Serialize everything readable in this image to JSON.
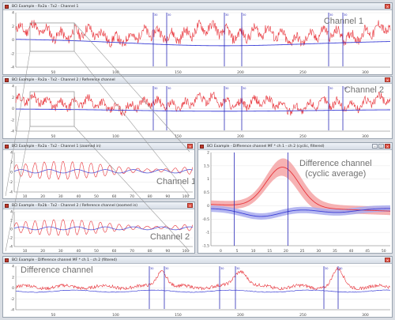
{
  "windows": {
    "ch1": {
      "title": "BCI Example - Rx2a - Tx2 - Channel 1",
      "overlay": "Channel 1",
      "yticks": [
        "4",
        "2",
        "0",
        "-2",
        "-4"
      ],
      "xticks": [
        "50",
        "100",
        "150",
        "200",
        "250",
        "300"
      ],
      "markers": [
        {
          "x": 188,
          "label": "30"
        },
        {
          "x": 205,
          "label": "30"
        },
        {
          "x": 278,
          "label": "30"
        },
        {
          "x": 300,
          "label": "30"
        },
        {
          "x": 410,
          "label": "30"
        },
        {
          "x": 428,
          "label": "30"
        }
      ]
    },
    "ch2": {
      "title": "BCI Example - Rx2a - Tx2 - Channel 2 / Reference channel",
      "overlay": "Channel 2",
      "yticks": [
        "4",
        "2",
        "0",
        "-2",
        "-4"
      ],
      "xticks": [
        "50",
        "100",
        "150",
        "200",
        "250",
        "300"
      ],
      "markers": [
        {
          "x": 188,
          "label": "30"
        },
        {
          "x": 205,
          "label": "30"
        },
        {
          "x": 278,
          "label": "30"
        },
        {
          "x": 300,
          "label": "30"
        },
        {
          "x": 410,
          "label": "30"
        },
        {
          "x": 428,
          "label": "30"
        }
      ]
    },
    "ch1zoom": {
      "title": "BCI Example - Rx2a - Tx2 - Channel 1 (zoomed in)",
      "overlay": "Channel 1",
      "yticks": [
        "4",
        "2",
        "0",
        "-2",
        "-4"
      ],
      "xticks": [
        "10",
        "20",
        "30",
        "40",
        "50",
        "60",
        "70",
        "80",
        "90",
        "100"
      ]
    },
    "ch2zoom": {
      "title": "BCI Example - Rx2b - Tx2 - Channel 2 / Reference channel (zoomed in)",
      "overlay": "Channel 2",
      "yticks": [
        "4",
        "2",
        "0",
        "-2",
        "-4"
      ],
      "xticks": [
        "10",
        "20",
        "30",
        "40",
        "50",
        "60",
        "70",
        "80",
        "90",
        "100"
      ]
    },
    "cyclic": {
      "title": "BCI Example - Difference channel MF * ch 1 - ch 2 (cyclic, filtered)",
      "overlay_line1": "Difference channel",
      "overlay_line2": "(cyclic average)",
      "yticks": [
        "2",
        "1.5",
        "1",
        "0.5",
        "0",
        "-0.5",
        "-1",
        "-1.5"
      ],
      "xticks": [
        "0",
        "5",
        "10",
        "15",
        "20",
        "25",
        "30",
        "35",
        "40",
        "45",
        "50"
      ]
    },
    "diff": {
      "title": "BCI Example - Difference channel MF * ch 1 - ch 2 (filtered)",
      "overlay": "Difference channel",
      "yticks": [
        "4",
        "2",
        "0",
        "-2",
        "-4"
      ],
      "xticks": [
        "50",
        "100",
        "150",
        "200",
        "250",
        "300"
      ],
      "markers": [
        {
          "x": 183,
          "label": "30"
        },
        {
          "x": 202,
          "label": "30"
        },
        {
          "x": 272,
          "label": "30"
        },
        {
          "x": 292,
          "label": "30"
        },
        {
          "x": 404,
          "label": "30"
        },
        {
          "x": 422,
          "label": "30"
        }
      ]
    }
  },
  "colors": {
    "red": "#e8333a",
    "red_band": "#f5a4a6",
    "blue": "#3b3fd6",
    "blue_band": "#a9abee",
    "marker": "#2a2ab8",
    "grid": "#e6e6e6"
  }
}
